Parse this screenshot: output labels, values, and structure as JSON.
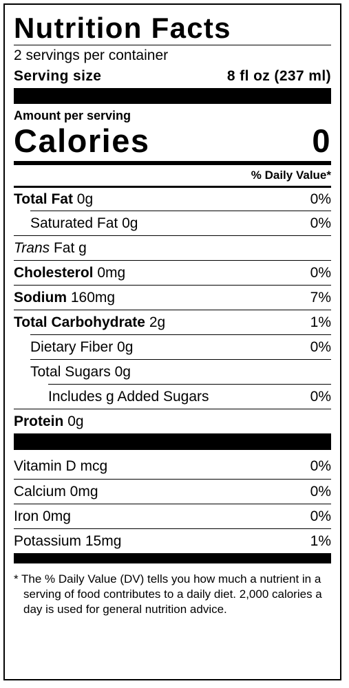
{
  "label": {
    "title": "Nutrition Facts",
    "servings": "2 servings per container",
    "serving_size": {
      "label": "Serving size",
      "value": "8 fl oz (237 ml)"
    },
    "amount_per_serving": "Amount per serving",
    "calories": {
      "label": "Calories",
      "value": "0"
    },
    "dv_header": "% Daily Value*",
    "nutrients": [
      {
        "name": "Total Fat",
        "amount": "0g",
        "dv": "0%"
      },
      {
        "name": "Saturated Fat",
        "amount": "0g",
        "dv": "0%"
      },
      {
        "emphasis": "Trans",
        "name": "Fat",
        "amount": "g"
      },
      {
        "name": "Cholesterol",
        "amount": "0mg",
        "dv": "0%"
      },
      {
        "name": "Sodium",
        "amount": "160mg",
        "dv": "7%"
      },
      {
        "name": "Total Carbohydrate",
        "amount": "2g",
        "dv": "1%"
      },
      {
        "name": "Dietary Fiber",
        "amount": "0g",
        "dv": "0%"
      },
      {
        "name": "Total Sugars",
        "amount": "0g"
      },
      {
        "name": "Includes g Added Sugars",
        "dv": "0%"
      },
      {
        "name": "Protein",
        "amount": "0g"
      }
    ],
    "vitamins": [
      {
        "name": "Vitamin D mcg",
        "dv": "0%"
      },
      {
        "name": "Calcium 0mg",
        "dv": "0%"
      },
      {
        "name": "Iron 0mg",
        "dv": "0%"
      },
      {
        "name": "Potassium 15mg",
        "dv": "1%"
      }
    ],
    "footnote": "* The % Daily Value (DV) tells you how much a nutrient in a serving of food contributes to a daily diet. 2,000 calories a day is used for general nutrition advice."
  }
}
